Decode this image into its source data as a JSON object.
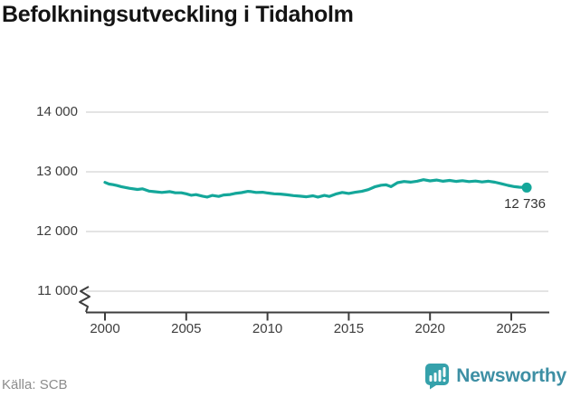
{
  "title": "Befolkningsutveckling i Tidaholm",
  "source": "Källa: SCB",
  "branding": {
    "logo_text": "Newsworthy",
    "logo_icon": "bar-chart-speech-bubble-icon",
    "icon_color": "#35a1ab",
    "wordmark_color": "#3d8fa4"
  },
  "chart_data": {
    "type": "line",
    "title": "Befolkningsutveckling i Tidaholm",
    "xlabel": "",
    "ylabel": "",
    "grid": "horizontal-only",
    "axis_break_at_bottom": true,
    "xlim": [
      1998.8,
      2027.3
    ],
    "ylim": [
      10800,
      14300
    ],
    "x_ticks": [
      2000,
      2005,
      2010,
      2015,
      2020,
      2025
    ],
    "x_tick_labels": [
      "2000",
      "2005",
      "2010",
      "2015",
      "2020",
      "2025"
    ],
    "y_ticks": [
      14000,
      13000,
      12000,
      11000
    ],
    "y_tick_labels": [
      "14 000",
      "13 000",
      "12 000",
      "11 000"
    ],
    "end_value": 12736,
    "end_label": "12 736",
    "series": [
      {
        "name": "Befolkning i Tidaholm",
        "color": "#14a79a",
        "points": [
          [
            2000.0,
            12822
          ],
          [
            2000.25,
            12795
          ],
          [
            2000.5,
            12785
          ],
          [
            2000.75,
            12770
          ],
          [
            2001.0,
            12752
          ],
          [
            2001.5,
            12725
          ],
          [
            2002.0,
            12705
          ],
          [
            2002.3,
            12715
          ],
          [
            2002.7,
            12678
          ],
          [
            2003.0,
            12668
          ],
          [
            2003.5,
            12655
          ],
          [
            2004.0,
            12668
          ],
          [
            2004.3,
            12650
          ],
          [
            2004.7,
            12648
          ],
          [
            2005.0,
            12632
          ],
          [
            2005.3,
            12608
          ],
          [
            2005.6,
            12618
          ],
          [
            2006.0,
            12592
          ],
          [
            2006.3,
            12578
          ],
          [
            2006.6,
            12605
          ],
          [
            2007.0,
            12588
          ],
          [
            2007.3,
            12612
          ],
          [
            2007.7,
            12620
          ],
          [
            2008.0,
            12638
          ],
          [
            2008.4,
            12652
          ],
          [
            2008.8,
            12672
          ],
          [
            2009.0,
            12668
          ],
          [
            2009.3,
            12655
          ],
          [
            2009.7,
            12658
          ],
          [
            2010.0,
            12645
          ],
          [
            2010.4,
            12632
          ],
          [
            2010.8,
            12628
          ],
          [
            2011.2,
            12615
          ],
          [
            2011.6,
            12602
          ],
          [
            2012.0,
            12592
          ],
          [
            2012.4,
            12582
          ],
          [
            2012.8,
            12598
          ],
          [
            2013.1,
            12578
          ],
          [
            2013.5,
            12605
          ],
          [
            2013.8,
            12588
          ],
          [
            2014.2,
            12628
          ],
          [
            2014.6,
            12655
          ],
          [
            2015.0,
            12638
          ],
          [
            2015.4,
            12658
          ],
          [
            2015.8,
            12672
          ],
          [
            2016.2,
            12702
          ],
          [
            2016.6,
            12748
          ],
          [
            2017.0,
            12775
          ],
          [
            2017.3,
            12782
          ],
          [
            2017.6,
            12752
          ],
          [
            2018.0,
            12818
          ],
          [
            2018.4,
            12838
          ],
          [
            2018.8,
            12828
          ],
          [
            2019.2,
            12842
          ],
          [
            2019.6,
            12868
          ],
          [
            2020.0,
            12848
          ],
          [
            2020.4,
            12862
          ],
          [
            2020.8,
            12842
          ],
          [
            2021.2,
            12856
          ],
          [
            2021.6,
            12840
          ],
          [
            2022.0,
            12852
          ],
          [
            2022.4,
            12836
          ],
          [
            2022.8,
            12846
          ],
          [
            2023.2,
            12830
          ],
          [
            2023.6,
            12842
          ],
          [
            2024.0,
            12826
          ],
          [
            2024.4,
            12800
          ],
          [
            2024.8,
            12772
          ],
          [
            2025.2,
            12752
          ],
          [
            2025.5,
            12742
          ],
          [
            2025.95,
            12736
          ]
        ]
      }
    ]
  }
}
